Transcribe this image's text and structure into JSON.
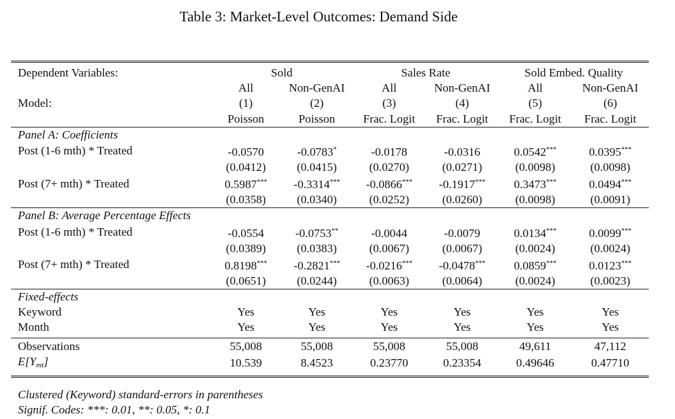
{
  "caption": "Table 3: Market-Level Outcomes: Demand Side",
  "header": {
    "dep_label": "Dependent Variables:",
    "groups": [
      "Sold",
      "Sales Rate",
      "Sold Embed. Quality"
    ],
    "subgroups": [
      "All",
      "Non-GenAI",
      "All",
      "Non-GenAI",
      "All",
      "Non-GenAI"
    ],
    "model_label": "Model:",
    "model_nums": [
      "(1)",
      "(2)",
      "(3)",
      "(4)",
      "(5)",
      "(6)"
    ],
    "model_types": [
      "Poisson",
      "Poisson",
      "Frac. Logit",
      "Frac. Logit",
      "Frac. Logit",
      "Frac. Logit"
    ]
  },
  "panelA": {
    "title": "Panel A: Coefficients",
    "rows": [
      {
        "label": "Post (1-6 mth) * Treated",
        "coef": [
          "-0.0570",
          "-0.0783",
          "-0.0178",
          "-0.0316",
          "0.0542",
          "0.0395"
        ],
        "stars": [
          "",
          "*",
          "",
          "",
          "***",
          "***"
        ],
        "se": [
          "(0.0412)",
          "(0.0415)",
          "(0.0270)",
          "(0.0271)",
          "(0.0098)",
          "(0.0098)"
        ]
      },
      {
        "label": "Post (7+ mth) * Treated",
        "coef": [
          "0.5987",
          "-0.3314",
          "-0.0866",
          "-0.1917",
          "0.3473",
          "0.0494"
        ],
        "stars": [
          "***",
          "***",
          "***",
          "***",
          "***",
          "***"
        ],
        "se": [
          "(0.0358)",
          "(0.0340)",
          "(0.0252)",
          "(0.0260)",
          "(0.0098)",
          "(0.0091)"
        ]
      }
    ]
  },
  "panelB": {
    "title": "Panel B: Average Percentage Effects",
    "rows": [
      {
        "label": "Post (1-6 mth) * Treated",
        "coef": [
          "-0.0554",
          "-0.0753",
          "-0.0044",
          "-0.0079",
          "0.0134",
          "0.0099"
        ],
        "stars": [
          "",
          "**",
          "",
          "",
          "***",
          "***"
        ],
        "se": [
          "(0.0389)",
          "(0.0383)",
          "(0.0067)",
          "(0.0067)",
          "(0.0024)",
          "(0.0024)"
        ]
      },
      {
        "label": "Post (7+ mth) * Treated",
        "coef": [
          "0.8198",
          "-0.2821",
          "-0.0216",
          "-0.0478",
          "0.0859",
          "0.0123"
        ],
        "stars": [
          "***",
          "***",
          "***",
          "***",
          "***",
          "***"
        ],
        "se": [
          "(0.0651)",
          "(0.0244)",
          "(0.0063)",
          "(0.0064)",
          "(0.0024)",
          "(0.0023)"
        ]
      }
    ]
  },
  "fixed_effects": {
    "title": "Fixed-effects",
    "rows": [
      {
        "label": "Keyword",
        "values": [
          "Yes",
          "Yes",
          "Yes",
          "Yes",
          "Yes",
          "Yes"
        ]
      },
      {
        "label": "Month",
        "values": [
          "Yes",
          "Yes",
          "Yes",
          "Yes",
          "Yes",
          "Yes"
        ]
      }
    ]
  },
  "stats": {
    "observations": {
      "label": "Observations",
      "values": [
        "55,008",
        "55,008",
        "55,008",
        "55,008",
        "49,611",
        "47,112"
      ]
    },
    "mean_y": {
      "label_main": "E[Y",
      "label_sub": "mt",
      "label_end": "]",
      "values": [
        "10.539",
        "8.4523",
        "0.23770",
        "0.23354",
        "0.49646",
        "0.47710"
      ]
    }
  },
  "notes": [
    "Clustered (Keyword) standard-errors in parentheses",
    "Signif. Codes: ***: 0.01, **: 0.05, *: 0.1"
  ]
}
